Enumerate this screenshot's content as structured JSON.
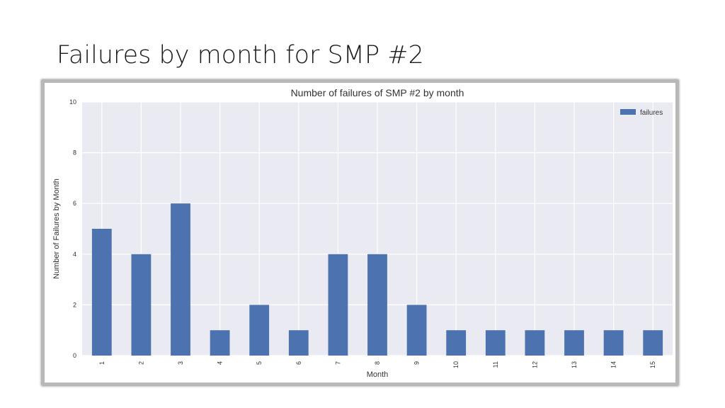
{
  "slide": {
    "title": "Failures by month for SMP #2"
  },
  "colors": {
    "bar": "#4c72b0",
    "plot_background": "#eaeaf2",
    "grid": "#ffffff"
  },
  "chart_data": {
    "type": "bar",
    "title": "Number of failures of SMP #2 by month",
    "xlabel": "Month",
    "ylabel": "Number of Failures by Month",
    "categories": [
      "1",
      "2",
      "3",
      "4",
      "5",
      "6",
      "7",
      "8",
      "9",
      "10",
      "11",
      "12",
      "13",
      "14",
      "15"
    ],
    "series": [
      {
        "name": "failures",
        "values": [
          5,
          4,
          6,
          1,
          2,
          1,
          4,
          4,
          2,
          1,
          1,
          1,
          1,
          1,
          1
        ]
      }
    ],
    "ylim": [
      0,
      10
    ],
    "yticks": [
      "0",
      "2",
      "4",
      "6",
      "8",
      "10"
    ],
    "grid": true,
    "legend_position": "top-right",
    "x_tick_rotation": "vertical"
  }
}
